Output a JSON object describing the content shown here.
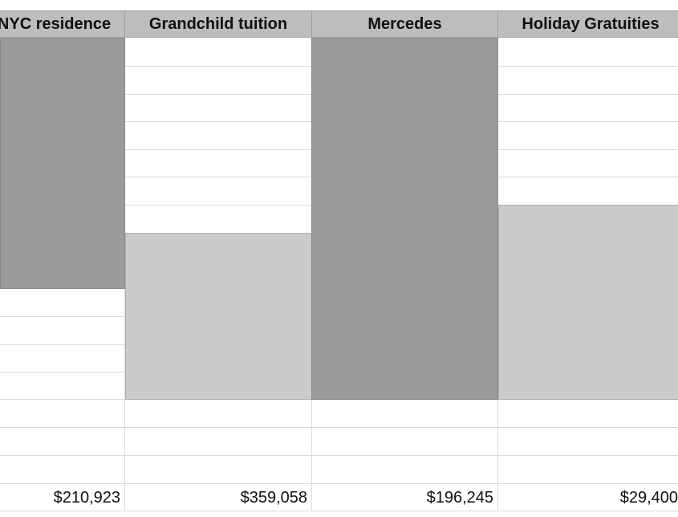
{
  "columns": [
    {
      "header": "NYC residence",
      "total": "$210,923"
    },
    {
      "header": "Grandchild tuition",
      "total": "$359,058"
    },
    {
      "header": "Mercedes",
      "total": "$196,245"
    },
    {
      "header": "Holiday Gratuities",
      "total": "$29,400"
    }
  ],
  "colors": {
    "header_bg": "#bdbdbd",
    "dark_block": "#9b9b9b",
    "light_block": "#cbcbcb",
    "grid_line": "#dadada"
  }
}
